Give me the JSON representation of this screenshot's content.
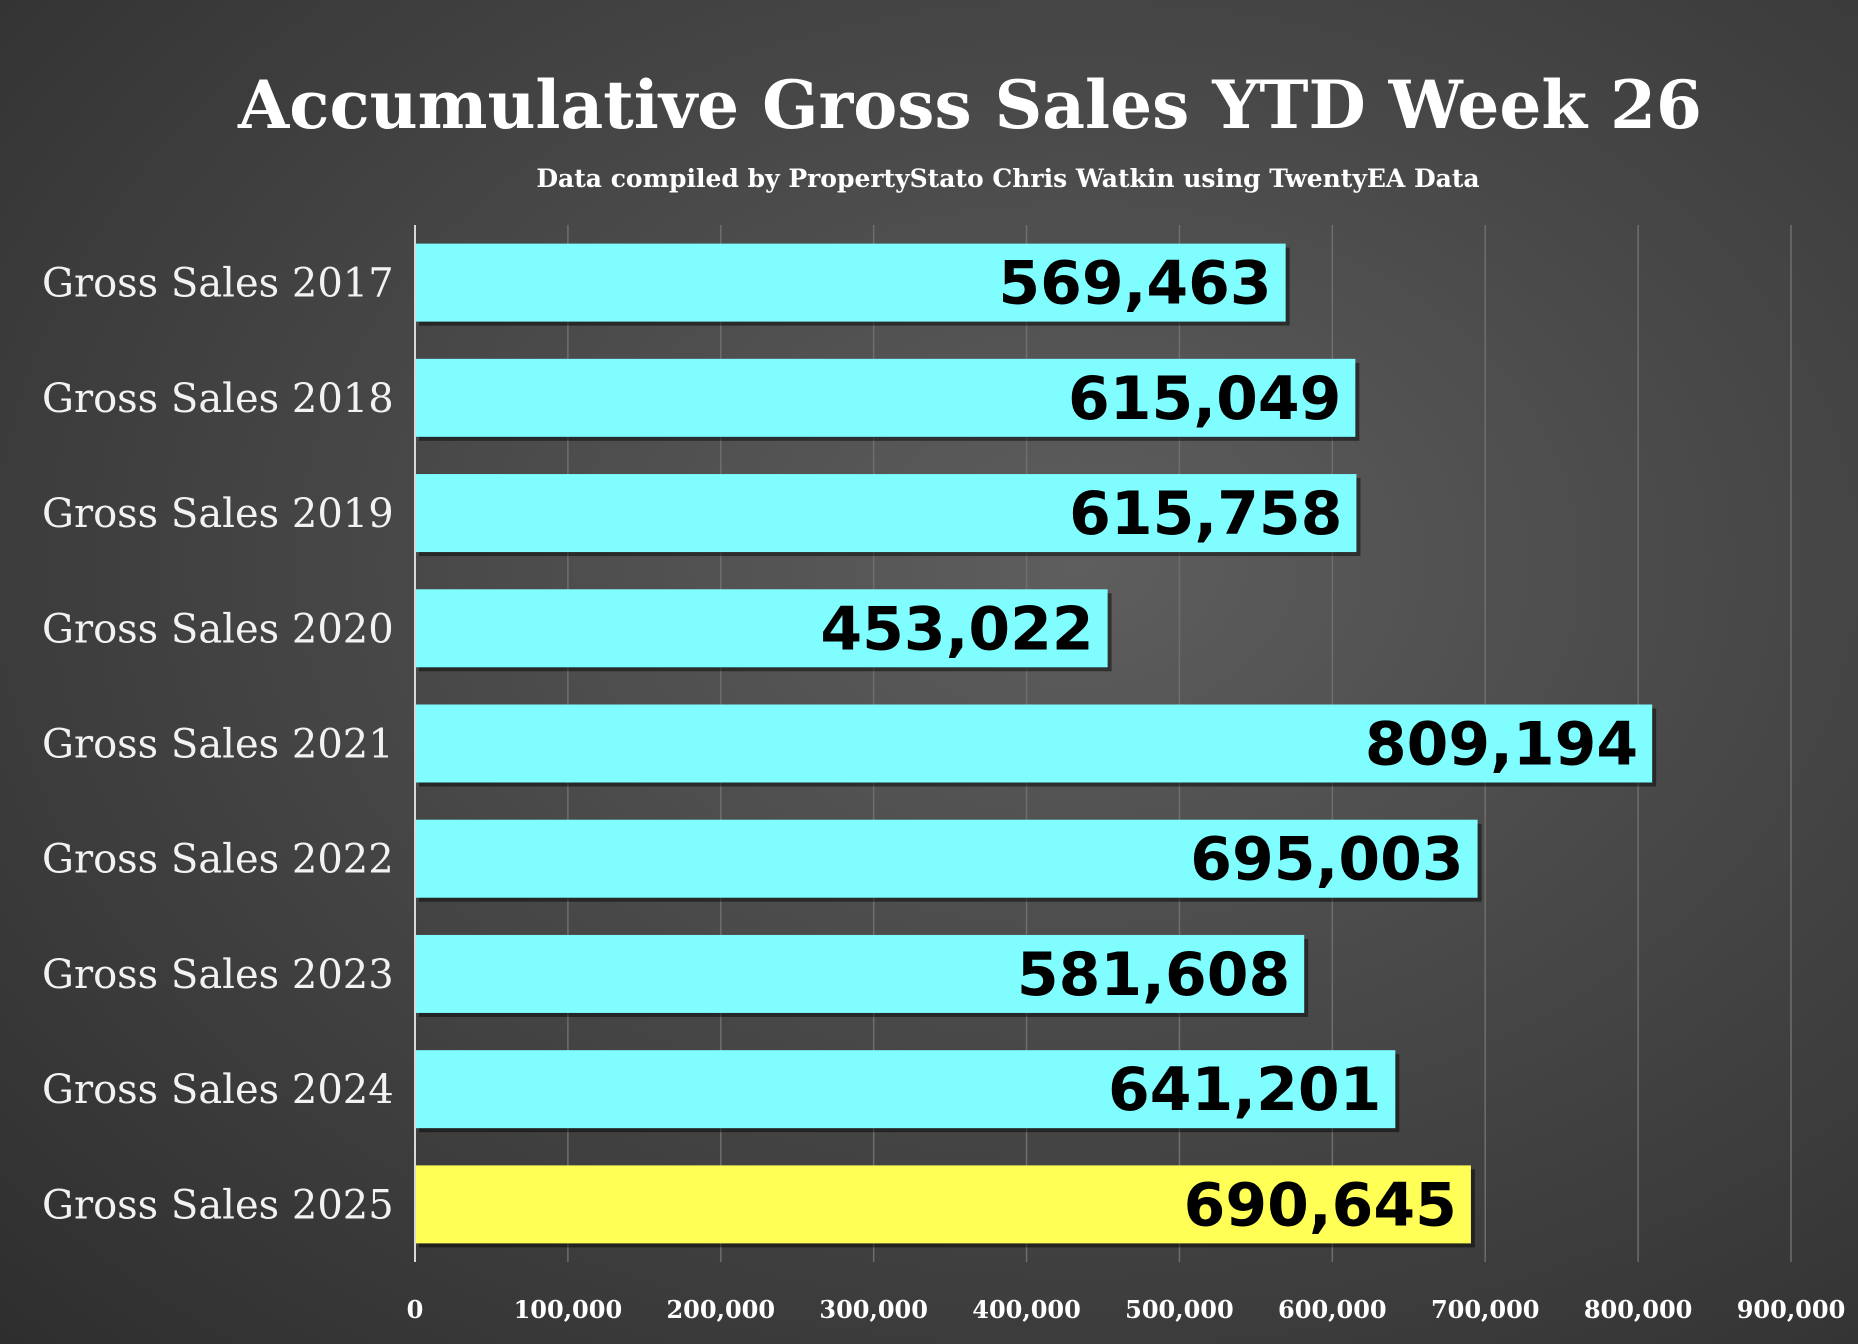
{
  "chart_data": {
    "type": "bar",
    "orientation": "horizontal",
    "title": "Accumulative Gross Sales YTD Week 26",
    "subtitle": "Data compiled by PropertyStato Chris Watkin using TwentyEA Data",
    "categories": [
      "Gross Sales 2017",
      "Gross Sales 2018",
      "Gross Sales 2019",
      "Gross Sales 2020",
      "Gross Sales 2021",
      "Gross Sales 2022",
      "Gross Sales 2023",
      "Gross Sales 2024",
      "Gross Sales 2025"
    ],
    "values": [
      569463,
      615049,
      615758,
      453022,
      809194,
      695003,
      581608,
      641201,
      690645
    ],
    "data_labels": [
      "569,463",
      "615,049",
      "615,758",
      "453,022",
      "809,194",
      "695,003",
      "581,608",
      "641,201",
      "690,645"
    ],
    "bar_colors": [
      "#7ffdff",
      "#7ffdff",
      "#7ffdff",
      "#7ffdff",
      "#7ffdff",
      "#7ffdff",
      "#7ffdff",
      "#7ffdff",
      "#ffff55"
    ],
    "xlim": [
      0,
      900000
    ],
    "xticks": [
      "0",
      "100,000",
      "200,000",
      "300,000",
      "400,000",
      "500,000",
      "600,000",
      "700,000",
      "800,000",
      "900,000"
    ],
    "grid": true,
    "colors": {
      "default_bar": "#7ffdff",
      "highlight_bar": "#ffff55",
      "gridline": "#6e6e6e",
      "text": "#ffffff"
    }
  }
}
